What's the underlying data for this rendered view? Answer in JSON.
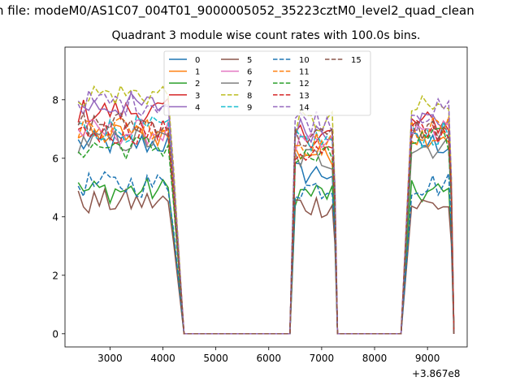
{
  "suptitle": "n file: modeM0/AS1C07_004T01_9000005052_35223cztM0_level2_quad_clean",
  "chart_data": {
    "type": "line",
    "title": "Quadrant 3 module wise count rates with 100.0s bins.",
    "xlabel": "",
    "ylabel": "",
    "x_offset_label": "+3.867e8",
    "xlim": [
      2150,
      9750
    ],
    "ylim": [
      -0.45,
      9.8
    ],
    "xticks": [
      3000,
      4000,
      5000,
      6000,
      7000,
      8000,
      9000
    ],
    "yticks": [
      0,
      2,
      4,
      6,
      8
    ],
    "grid": false,
    "legend": {
      "placement": "top-center",
      "columns": 4
    },
    "segments": [
      {
        "x_start": 2400,
        "x_end": 4100,
        "drop_to": 4400,
        "zero_until": 6400
      },
      {
        "x_start": 6500,
        "x_end": 7200,
        "drop_to": 7300,
        "zero_until": 8500
      },
      {
        "x_start": 8700,
        "x_end": 9400,
        "drop_to": 9500
      }
    ],
    "series": [
      {
        "name": "0",
        "color": "#1f77b4",
        "dash": false,
        "level": 6.5,
        "seg2": 5.5,
        "seg3": 6.5
      },
      {
        "name": "1",
        "color": "#ff7f0e",
        "dash": false,
        "level": 6.8,
        "seg2": 6.2,
        "seg3": 6.8
      },
      {
        "name": "2",
        "color": "#2ca02c",
        "dash": false,
        "level": 4.9,
        "seg2": 4.8,
        "seg3": 4.8
      },
      {
        "name": "3",
        "color": "#d62728",
        "dash": false,
        "level": 7.6,
        "seg2": 6.8,
        "seg3": 7.2
      },
      {
        "name": "4",
        "color": "#9467bd",
        "dash": false,
        "level": 7.8,
        "seg2": 7.0,
        "seg3": 7.3
      },
      {
        "name": "5",
        "color": "#8c564b",
        "dash": false,
        "level": 4.5,
        "seg2": 4.4,
        "seg3": 4.4
      },
      {
        "name": "6",
        "color": "#e377c2",
        "dash": false,
        "level": 6.9,
        "seg2": 6.4,
        "seg3": 6.9
      },
      {
        "name": "7",
        "color": "#7f7f7f",
        "dash": false,
        "level": 6.6,
        "seg2": 6.0,
        "seg3": 6.4
      },
      {
        "name": "8",
        "color": "#bcbd22",
        "dash": true,
        "level": 8.2,
        "seg2": 7.2,
        "seg3": 7.7
      },
      {
        "name": "9",
        "color": "#17becf",
        "dash": true,
        "level": 7.0,
        "seg2": 6.6,
        "seg3": 6.8
      },
      {
        "name": "10",
        "color": "#1f77b4",
        "dash": true,
        "level": 5.1,
        "seg2": 5.0,
        "seg3": 5.1
      },
      {
        "name": "11",
        "color": "#ff7f0e",
        "dash": true,
        "level": 7.1,
        "seg2": 6.5,
        "seg3": 7.0
      },
      {
        "name": "12",
        "color": "#2ca02c",
        "dash": true,
        "level": 6.4,
        "seg2": 6.0,
        "seg3": 6.6
      },
      {
        "name": "13",
        "color": "#d62728",
        "dash": true,
        "level": 6.9,
        "seg2": 6.2,
        "seg3": 6.9
      },
      {
        "name": "14",
        "color": "#9467bd",
        "dash": true,
        "level": 7.9,
        "seg2": 7.3,
        "seg3": 7.6
      },
      {
        "name": "15",
        "color": "#8c564b",
        "dash": true,
        "level": 7.2,
        "seg2": 6.7,
        "seg3": 7.0
      }
    ]
  }
}
